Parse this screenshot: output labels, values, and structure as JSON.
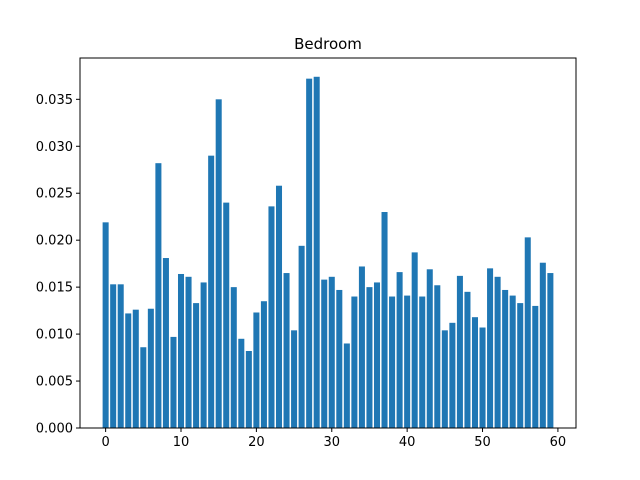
{
  "chart_data": {
    "type": "bar",
    "title": "Bedroom",
    "xlabel": "",
    "ylabel": "",
    "xlim": [
      -3.4,
      62.4
    ],
    "ylim": [
      0,
      0.0394
    ],
    "bar_color": "#1f77b4",
    "bar_width": 0.8,
    "grid": false,
    "x": [
      0,
      1,
      2,
      3,
      4,
      5,
      6,
      7,
      8,
      9,
      10,
      11,
      12,
      13,
      14,
      15,
      16,
      17,
      18,
      19,
      20,
      21,
      22,
      23,
      24,
      25,
      26,
      27,
      28,
      29,
      30,
      31,
      32,
      33,
      34,
      35,
      36,
      37,
      38,
      39,
      40,
      41,
      42,
      43,
      44,
      45,
      46,
      47,
      48,
      49,
      50,
      51,
      52,
      53,
      54,
      55,
      56,
      57,
      58,
      59
    ],
    "values": [
      0.0219,
      0.0153,
      0.0153,
      0.0122,
      0.0126,
      0.0086,
      0.0127,
      0.0282,
      0.0181,
      0.0097,
      0.0164,
      0.0161,
      0.0133,
      0.0155,
      0.029,
      0.035,
      0.024,
      0.015,
      0.0095,
      0.0082,
      0.0123,
      0.0135,
      0.0236,
      0.0258,
      0.0165,
      0.0104,
      0.0194,
      0.0372,
      0.0374,
      0.0158,
      0.0161,
      0.0147,
      0.009,
      0.014,
      0.0172,
      0.015,
      0.0155,
      0.023,
      0.014,
      0.0166,
      0.0141,
      0.0187,
      0.014,
      0.0169,
      0.0152,
      0.0104,
      0.0112,
      0.0162,
      0.0145,
      0.0118,
      0.0107,
      0.017,
      0.0161,
      0.0147,
      0.0141,
      0.0133,
      0.0203,
      0.013,
      0.0176,
      0.0165
    ],
    "xticks": [
      0,
      10,
      20,
      30,
      40,
      50,
      60
    ],
    "xtick_labels": [
      "0",
      "10",
      "20",
      "30",
      "40",
      "50",
      "60"
    ],
    "yticks": [
      0,
      0.005,
      0.01,
      0.015,
      0.02,
      0.025,
      0.03,
      0.035
    ],
    "ytick_labels": [
      "0.000",
      "0.005",
      "0.010",
      "0.015",
      "0.020",
      "0.025",
      "0.030",
      "0.035"
    ]
  }
}
